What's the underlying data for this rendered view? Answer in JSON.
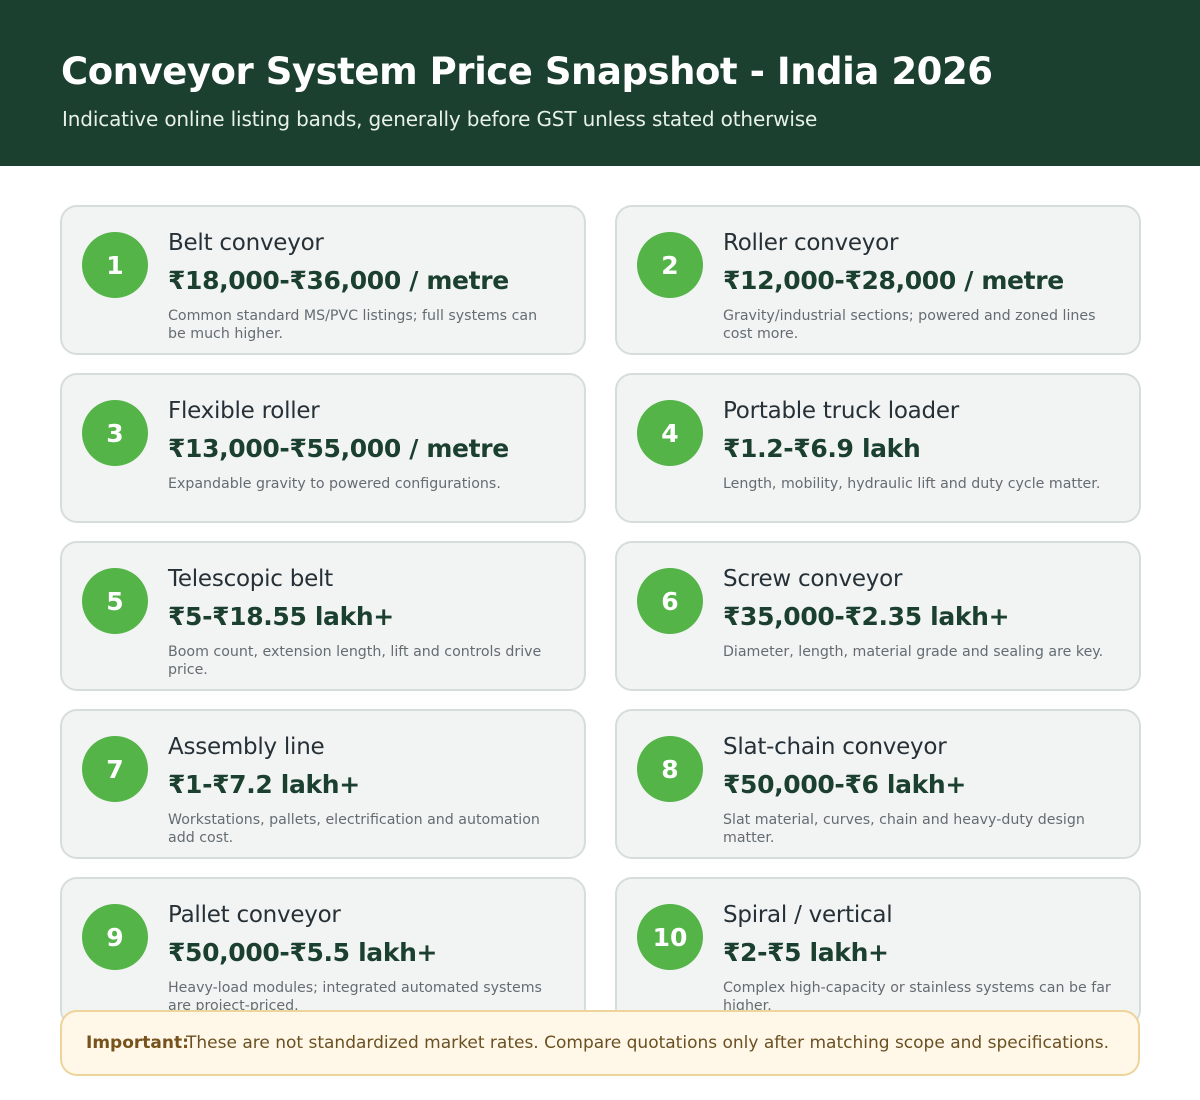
{
  "header": {
    "title": "Conveyor System Price Snapshot - India 2026",
    "subtitle": "Indicative online listing bands, generally before GST unless stated otherwise"
  },
  "cards": [
    {
      "number": "1",
      "title": "Belt conveyor",
      "price": "₹18,000-₹36,000 / metre",
      "note": "Common standard MS/PVC listings; full systems can be much higher."
    },
    {
      "number": "2",
      "title": "Roller conveyor",
      "price": "₹12,000-₹28,000 / metre",
      "note": "Gravity/industrial sections; powered and zoned lines cost more."
    },
    {
      "number": "3",
      "title": "Flexible roller",
      "price": "₹13,000-₹55,000 / metre",
      "note": "Expandable gravity to powered configurations."
    },
    {
      "number": "4",
      "title": "Portable truck loader",
      "price": "₹1.2-₹6.9 lakh",
      "note": "Length, mobility, hydraulic lift and duty cycle matter."
    },
    {
      "number": "5",
      "title": "Telescopic belt",
      "price": "₹5-₹18.55 lakh+",
      "note": "Boom count, extension length, lift and controls drive price."
    },
    {
      "number": "6",
      "title": "Screw conveyor",
      "price": "₹35,000-₹2.35 lakh+",
      "note": "Diameter, length, material grade and sealing are key."
    },
    {
      "number": "7",
      "title": "Assembly line",
      "price": "₹1-₹7.2 lakh+",
      "note": "Workstations, pallets, electrification and automation add cost."
    },
    {
      "number": "8",
      "title": "Slat-chain conveyor",
      "price": "₹50,000-₹6 lakh+",
      "note": "Slat material, curves, chain and heavy-duty design matter."
    },
    {
      "number": "9",
      "title": "Pallet conveyor",
      "price": "₹50,000-₹5.5 lakh+",
      "note": "Heavy-load modules; integrated automated systems are project-priced."
    },
    {
      "number": "10",
      "title": "Spiral / vertical",
      "price": "₹2-₹5 lakh+",
      "note": "Complex high-capacity or stainless systems can be far higher."
    }
  ],
  "important": {
    "label": "Important:",
    "text": "These are not standardized market rates. Compare quotations only after matching scope and specifications."
  },
  "colors": {
    "header_background": "#1b402f",
    "badge_green": "#54b448",
    "card_background": "#f2f4f3",
    "notice_background": "#fff7e7",
    "notice_text": "#76521c"
  }
}
